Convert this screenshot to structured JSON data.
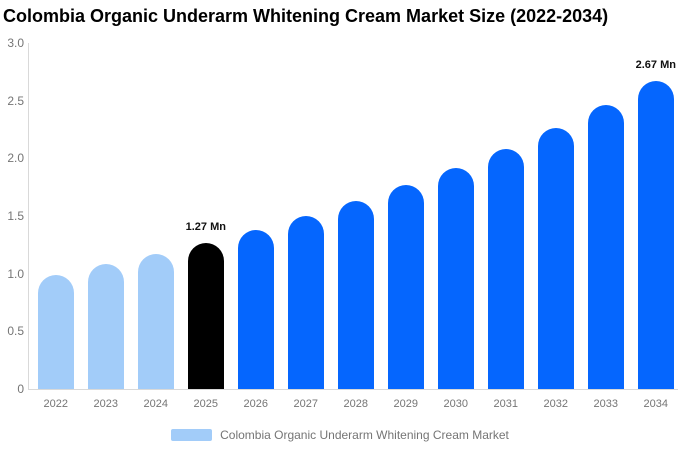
{
  "title": "Colombia Organic Underarm Whitening Cream Market Size (2022-2034)",
  "legend": {
    "label": "Colombia Organic Underarm Whitening Cream Market",
    "swatch_color": "#a2ccf9"
  },
  "colors": {
    "historical_bar": "#a2ccf9",
    "base_year_bar": "#000000",
    "forecast_bar": "#0566fe",
    "axis_line": "#d9d9d9",
    "muted_text": "#757575",
    "title_text": "#000000",
    "data_label_text": "#111111"
  },
  "chart_data": {
    "type": "bar",
    "title": "Colombia Organic Underarm Whitening Cream Market Size (2022-2034)",
    "unit": "Mn",
    "categories": [
      "2022",
      "2023",
      "2024",
      "2025",
      "2026",
      "2027",
      "2028",
      "2029",
      "2030",
      "2031",
      "2032",
      "2033",
      "2034"
    ],
    "values": [
      0.99,
      1.08,
      1.17,
      1.27,
      1.38,
      1.5,
      1.63,
      1.77,
      1.92,
      2.08,
      2.26,
      2.46,
      2.67
    ],
    "bar_colors": [
      "#a2ccf9",
      "#a2ccf9",
      "#a2ccf9",
      "#000000",
      "#0566fe",
      "#0566fe",
      "#0566fe",
      "#0566fe",
      "#0566fe",
      "#0566fe",
      "#0566fe",
      "#0566fe",
      "#0566fe"
    ],
    "yticks": [
      "3.0",
      "2.5",
      "2.0",
      "1.5",
      "1.0",
      "0.5",
      "0"
    ],
    "ylim": [
      0,
      3.0
    ],
    "grid": false,
    "legend_position": "bottom",
    "annotations": [
      {
        "year": "2025",
        "label": "1.27 Mn"
      },
      {
        "year": "2034",
        "label": "2.67 Mn"
      }
    ]
  }
}
